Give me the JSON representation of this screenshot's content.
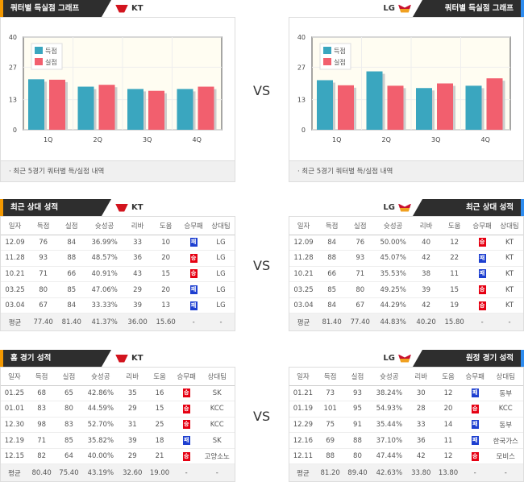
{
  "vs": "VS",
  "colors": {
    "scored": "#3aa6bf",
    "allowed": "#f25f6e",
    "win": "#e60012",
    "loss": "#1d3fd0"
  },
  "headers": [
    "일자",
    "득점",
    "실점",
    "슛성공",
    "리바",
    "도움",
    "승무패",
    "상대팀"
  ],
  "quarter": {
    "left": {
      "title": "쿼터별 득실점 그래프",
      "team": "KT",
      "footer": "최근 5경기 쿼터별 득/실점 내역"
    },
    "right": {
      "title": "쿼터별 득실점 그래프",
      "team": "LG",
      "footer": "최근 5경기 쿼터별 득/실점 내역"
    }
  },
  "chart_data": [
    {
      "type": "bar",
      "title": "KT",
      "categories": [
        "1Q",
        "2Q",
        "3Q",
        "4Q"
      ],
      "yticks": [
        0,
        13,
        27,
        40
      ],
      "ylim": [
        0,
        40
      ],
      "legend": "top-left",
      "series": [
        {
          "name": "득점",
          "values": [
            21.8,
            18.6,
            17.6,
            17.6
          ]
        },
        {
          "name": "실점",
          "values": [
            21.6,
            19.4,
            16.8,
            18.6
          ]
        }
      ]
    },
    {
      "type": "bar",
      "title": "LG",
      "categories": [
        "1Q",
        "2Q",
        "3Q",
        "4Q"
      ],
      "yticks": [
        0,
        13,
        27,
        40
      ],
      "ylim": [
        0,
        40
      ],
      "legend": "top-left",
      "series": [
        {
          "name": "득점",
          "values": [
            21.4,
            25.2,
            18.0,
            19.0
          ]
        },
        {
          "name": "실점",
          "values": [
            19.2,
            19.0,
            20.0,
            22.2
          ]
        }
      ]
    }
  ],
  "tables": {
    "recent_left": {
      "title": "최근 상대 성적",
      "team": "KT",
      "rows": [
        [
          "12.09",
          "76",
          "84",
          "36.99%",
          "33",
          "10",
          "패",
          "LG"
        ],
        [
          "11.28",
          "93",
          "88",
          "48.57%",
          "36",
          "20",
          "승",
          "LG"
        ],
        [
          "10.21",
          "71",
          "66",
          "40.91%",
          "43",
          "15",
          "승",
          "LG"
        ],
        [
          "03.25",
          "80",
          "85",
          "47.06%",
          "29",
          "20",
          "패",
          "LG"
        ],
        [
          "03.04",
          "67",
          "84",
          "33.33%",
          "39",
          "13",
          "패",
          "LG"
        ]
      ],
      "avg": [
        "평균",
        "77.40",
        "81.40",
        "41.37%",
        "36.00",
        "15.60",
        "-",
        "-"
      ]
    },
    "recent_right": {
      "title": "최근 상대 성적",
      "team": "LG",
      "rows": [
        [
          "12.09",
          "84",
          "76",
          "50.00%",
          "40",
          "12",
          "승",
          "KT"
        ],
        [
          "11.28",
          "88",
          "93",
          "45.07%",
          "42",
          "22",
          "패",
          "KT"
        ],
        [
          "10.21",
          "66",
          "71",
          "35.53%",
          "38",
          "11",
          "패",
          "KT"
        ],
        [
          "03.25",
          "85",
          "80",
          "49.25%",
          "39",
          "15",
          "승",
          "KT"
        ],
        [
          "03.04",
          "84",
          "67",
          "44.29%",
          "42",
          "19",
          "승",
          "KT"
        ]
      ],
      "avg": [
        "평균",
        "81.40",
        "77.40",
        "44.83%",
        "40.20",
        "15.80",
        "-",
        "-"
      ]
    },
    "home_left": {
      "title": "홈 경기 성적",
      "team": "KT",
      "rows": [
        [
          "01.25",
          "68",
          "65",
          "42.86%",
          "35",
          "16",
          "승",
          "SK"
        ],
        [
          "01.01",
          "83",
          "80",
          "44.59%",
          "29",
          "15",
          "승",
          "KCC"
        ],
        [
          "12.30",
          "98",
          "83",
          "52.70%",
          "31",
          "25",
          "승",
          "KCC"
        ],
        [
          "12.19",
          "71",
          "85",
          "35.82%",
          "39",
          "18",
          "패",
          "SK"
        ],
        [
          "12.15",
          "82",
          "64",
          "40.00%",
          "29",
          "21",
          "승",
          "고양소노"
        ]
      ],
      "avg": [
        "평균",
        "80.40",
        "75.40",
        "43.19%",
        "32.60",
        "19.00",
        "-",
        "-"
      ]
    },
    "away_right": {
      "title": "원정 경기 성적",
      "team": "LG",
      "rows": [
        [
          "01.21",
          "73",
          "93",
          "38.24%",
          "30",
          "12",
          "패",
          "동부"
        ],
        [
          "01.19",
          "101",
          "95",
          "54.93%",
          "28",
          "20",
          "승",
          "KCC"
        ],
        [
          "12.29",
          "75",
          "91",
          "35.44%",
          "33",
          "14",
          "패",
          "동부"
        ],
        [
          "12.16",
          "69",
          "88",
          "37.10%",
          "36",
          "11",
          "패",
          "한국가스"
        ],
        [
          "12.11",
          "88",
          "80",
          "47.44%",
          "42",
          "12",
          "승",
          "모비스"
        ]
      ],
      "avg": [
        "평균",
        "81.20",
        "89.40",
        "42.63%",
        "33.80",
        "13.80",
        "-",
        "-"
      ]
    }
  }
}
